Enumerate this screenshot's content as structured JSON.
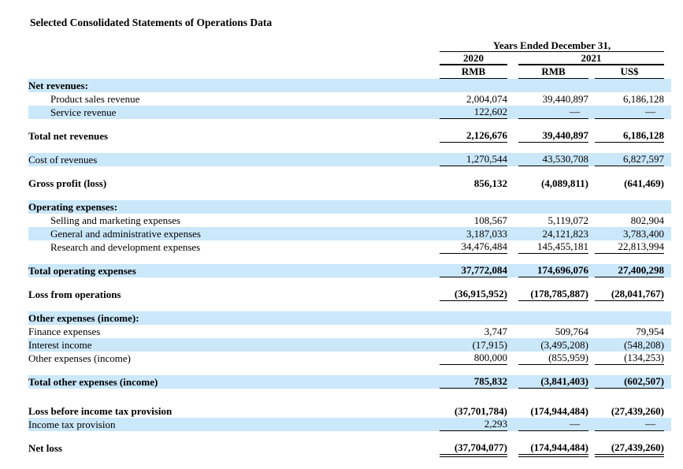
{
  "title": "Selected Consolidated Statements of Operations Data",
  "table": {
    "group_header": "Years Ended December 31,",
    "year_2020": "2020",
    "year_2021": "2021",
    "unit_headers": [
      "RMB",
      "RMB",
      "US$"
    ],
    "columns": [
      "2020 RMB",
      "2021 RMB",
      "2021 US$"
    ],
    "rows": [
      {
        "label": "Net revenues:",
        "values": [
          "",
          "",
          ""
        ],
        "bold": true,
        "hl": true
      },
      {
        "label": "Product sales revenue",
        "values": [
          "2,004,074",
          "39,440,897",
          "6,186,128"
        ],
        "indent": true
      },
      {
        "label": "Service revenue",
        "values": [
          "122,602",
          "—",
          "—"
        ],
        "hl": true,
        "indent": true,
        "rule": "single"
      },
      {
        "label": "Total net revenues",
        "values": [
          "2,126,676",
          "39,440,897",
          "6,186,128"
        ],
        "bold": true,
        "rule": "single",
        "gap": true
      },
      {
        "label": "Cost of revenues",
        "values": [
          "1,270,544",
          "43,530,708",
          "6,827,597"
        ],
        "hl": true,
        "rule": "single",
        "gap": true
      },
      {
        "label": "Gross profit (loss)",
        "values": [
          "856,132",
          "(4,089,811)",
          "(641,469)"
        ],
        "bold": true,
        "gap": true
      },
      {
        "label": "Operating expenses:",
        "values": [
          "",
          "",
          ""
        ],
        "bold": true,
        "hl": true,
        "gap": true
      },
      {
        "label": "Selling and marketing expenses",
        "values": [
          "108,567",
          "5,119,072",
          "802,904"
        ],
        "indent": true
      },
      {
        "label": "General and administrative expenses",
        "values": [
          "3,187,033",
          "24,121,823",
          "3,783,400"
        ],
        "hl": true,
        "indent": true
      },
      {
        "label": "Research and development expenses",
        "values": [
          "34,476,484",
          "145,455,181",
          "22,813,994"
        ],
        "indent": true,
        "rule": "single"
      },
      {
        "label": "Total operating expenses",
        "values": [
          "37,772,084",
          "174,696,076",
          "27,400,298"
        ],
        "bold": true,
        "hl": true,
        "rule": "single",
        "gap": true
      },
      {
        "label": "Loss from operations",
        "values": [
          "(36,915,952)",
          "(178,785,887)",
          "(28,041,767)"
        ],
        "bold": true,
        "rule": "single",
        "gap": true
      },
      {
        "label": "Other expenses (income):",
        "values": [
          "",
          "",
          ""
        ],
        "bold": true,
        "hl": true,
        "gap": true
      },
      {
        "label": "Finance expenses",
        "values": [
          "3,747",
          "509,764",
          "79,954"
        ]
      },
      {
        "label": "Interest income",
        "values": [
          "(17,915)",
          "(3,495,208)",
          "(548,208)"
        ],
        "hl": true
      },
      {
        "label": "Other expenses (income)",
        "values": [
          "800,000",
          "(855,959)",
          "(134,253)"
        ],
        "rule": "single"
      },
      {
        "label": "Total other expenses (income)",
        "values": [
          "785,832",
          "(3,841,403)",
          "(602,507)"
        ],
        "bold": true,
        "hl": true,
        "rule": "single",
        "gap": true
      },
      {
        "label": "Loss before income tax provision",
        "values": [
          "(37,701,784)",
          "(174,944,484)",
          "(27,439,260)"
        ],
        "bold": true,
        "gap_large": true
      },
      {
        "label": "Income tax provision",
        "values": [
          "2,293",
          "—",
          "—"
        ],
        "hl": true,
        "rule": "single"
      },
      {
        "label": "Net loss",
        "values": [
          "(37,704,077)",
          "(174,944,484)",
          "(27,439,260)"
        ],
        "bold": true,
        "rule": "double",
        "gap": true
      }
    ]
  },
  "colors": {
    "highlight_row": "#cbe7fa",
    "text": "#000000",
    "background": "#ffffff"
  }
}
